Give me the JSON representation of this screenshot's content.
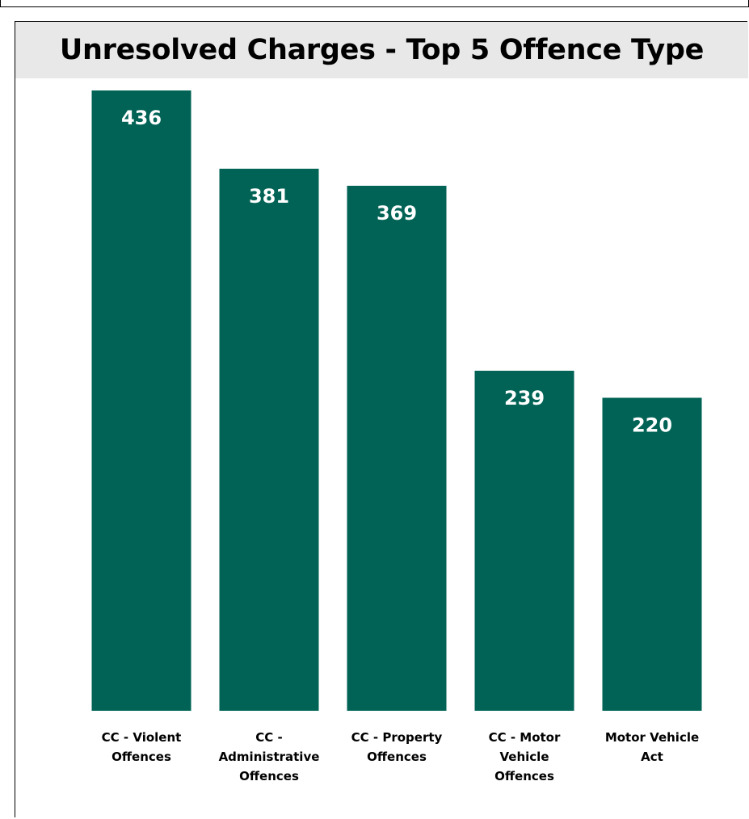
{
  "chart_data": {
    "type": "bar",
    "title": "Unresolved Charges - Top 5 Offence Type",
    "categories": [
      [
        "CC - Violent",
        "Offences"
      ],
      [
        "CC -",
        "Administrative",
        "Offences"
      ],
      [
        "CC - Property",
        "Offences"
      ],
      [
        "CC - Motor",
        "Vehicle",
        "Offences"
      ],
      [
        "Motor Vehicle",
        "Act"
      ]
    ],
    "values": [
      436,
      381,
      369,
      239,
      220
    ],
    "xlabel": "",
    "ylabel": "",
    "ylim": [
      0,
      436
    ],
    "grid": false,
    "legend": "none",
    "data_labels": "inside-top",
    "colors": {
      "bar": "#006356",
      "data_label": "#ffffff",
      "title_band": "#e8e8e8"
    }
  }
}
